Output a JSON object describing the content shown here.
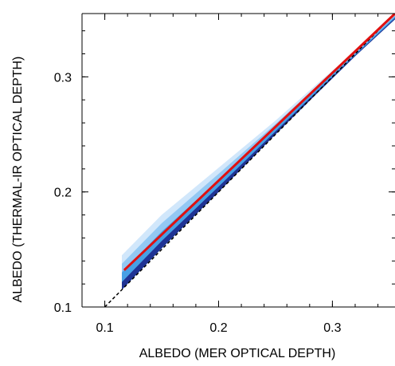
{
  "chart_data": {
    "type": "scatter",
    "title": "",
    "xlabel": "ALBEDO (MER OPTICAL DEPTH)",
    "ylabel": "ALBEDO (THERMAL-IR OPTICAL DEPTH)",
    "xlim": [
      0.08,
      0.355
    ],
    "ylim": [
      0.1,
      0.355
    ],
    "x_ticks": [
      "0.1",
      "0.2",
      "0.3"
    ],
    "y_ticks": [
      "0.1",
      "0.2",
      "0.3"
    ],
    "grid": false,
    "colors": {
      "density_light": "#cfe6fb",
      "density_mid": "#3f9be3",
      "density_dark": "#1f2d8f",
      "fit_line": "#e01010",
      "one_to_one": "#000000"
    },
    "density_band": {
      "upper": [
        [
          0.115,
          0.145
        ],
        [
          0.15,
          0.18
        ],
        [
          0.2,
          0.221
        ],
        [
          0.25,
          0.262
        ],
        [
          0.29,
          0.297
        ],
        [
          0.32,
          0.322
        ],
        [
          0.355,
          0.355
        ]
      ],
      "lower": [
        [
          0.355,
          0.35
        ],
        [
          0.32,
          0.318
        ],
        [
          0.29,
          0.289
        ],
        [
          0.25,
          0.25
        ],
        [
          0.2,
          0.2
        ],
        [
          0.15,
          0.151
        ],
        [
          0.115,
          0.115
        ]
      ]
    },
    "fit_line": {
      "x": [
        0.117,
        0.355
      ],
      "y": [
        0.132,
        0.355
      ]
    },
    "one_to_one_line": {
      "x": [
        0.1,
        0.355
      ],
      "y": [
        0.1,
        0.355
      ]
    }
  }
}
